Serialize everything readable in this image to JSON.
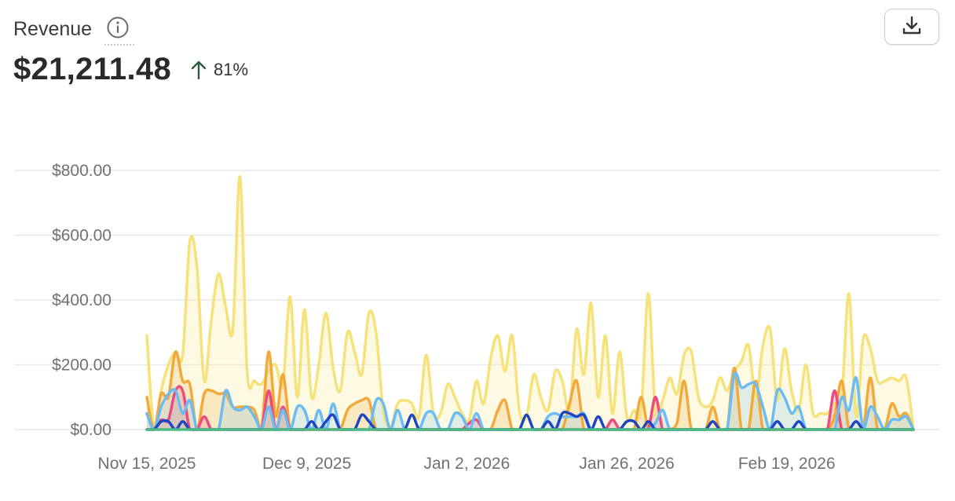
{
  "header": {
    "title": "Revenue",
    "total": "$21,211.48",
    "delta": "81%"
  },
  "icons": {
    "info": "info-icon",
    "delta": "arrow-up-icon",
    "download": "download-icon"
  },
  "colors": {
    "gold": "#f6e27a",
    "orange": "#f2a93b",
    "pink": "#ec4c7d",
    "sky": "#6cbcf2",
    "navy": "#1f45c2",
    "green": "#4dbb82",
    "grid": "#e9e9e9"
  },
  "chart_data": {
    "type": "area",
    "title": "Revenue",
    "xlabel": "",
    "ylabel": "",
    "x_range": [
      "2025-11-15",
      "2026-03-10"
    ],
    "ylim": [
      0,
      820
    ],
    "y_ticks": [
      {
        "value": 0,
        "label": "$0.00"
      },
      {
        "value": 200,
        "label": "$200.00"
      },
      {
        "value": 400,
        "label": "$400.00"
      },
      {
        "value": 600,
        "label": "$600.00"
      },
      {
        "value": 800,
        "label": "$800.00"
      }
    ],
    "x_ticks": [
      {
        "date": "2025-11-15",
        "label": "Nov 15, 2025"
      },
      {
        "date": "2025-12-09",
        "label": "Dec 9, 2025"
      },
      {
        "date": "2026-01-02",
        "label": "Jan 2, 2026"
      },
      {
        "date": "2026-01-26",
        "label": "Jan 26, 2026"
      },
      {
        "date": "2026-02-19",
        "label": "Feb 19, 2026"
      }
    ],
    "grid": true,
    "legend": "none",
    "series": [
      {
        "color": "#f6e27a",
        "fill": true,
        "values": [
          290,
          0,
          120,
          200,
          240,
          230,
          580,
          500,
          150,
          340,
          480,
          380,
          310,
          780,
          180,
          150,
          140,
          180,
          200,
          140,
          410,
          100,
          370,
          100,
          200,
          360,
          190,
          120,
          300,
          240,
          170,
          360,
          300,
          60,
          10,
          80,
          90,
          80,
          40,
          230,
          50,
          50,
          140,
          100,
          50,
          30,
          150,
          80,
          220,
          290,
          180,
          290,
          60,
          40,
          170,
          100,
          60,
          180,
          150,
          60,
          310,
          170,
          390,
          100,
          290,
          50,
          240,
          40,
          60,
          60,
          420,
          50,
          90,
          160,
          110,
          230,
          240,
          100,
          70,
          90,
          160,
          120,
          180,
          210,
          260,
          100,
          260,
          310,
          90,
          250,
          120,
          60,
          200,
          50,
          50,
          50,
          80,
          100,
          420,
          40,
          280,
          250,
          150,
          150,
          160,
          150,
          160,
          0
        ]
      },
      {
        "color": "#f2a93b",
        "fill": true,
        "values": [
          100,
          0,
          110,
          100,
          240,
          150,
          140,
          0,
          110,
          120,
          110,
          110,
          70,
          70,
          70,
          60,
          0,
          240,
          40,
          170,
          0,
          0,
          0,
          0,
          0,
          0,
          0,
          0,
          60,
          80,
          90,
          90,
          0,
          0,
          0,
          0,
          0,
          0,
          0,
          0,
          0,
          0,
          0,
          0,
          0,
          0,
          0,
          0,
          0,
          60,
          90,
          0,
          0,
          0,
          0,
          0,
          0,
          0,
          0,
          80,
          150,
          0,
          0,
          0,
          0,
          0,
          0,
          0,
          0,
          100,
          0,
          0,
          0,
          0,
          20,
          150,
          0,
          0,
          0,
          70,
          0,
          0,
          190,
          0,
          0,
          150,
          0,
          0,
          0,
          0,
          0,
          0,
          0,
          0,
          0,
          0,
          40,
          150,
          0,
          0,
          0,
          160,
          0,
          0,
          80,
          40,
          50,
          0
        ]
      },
      {
        "color": "#ec4c7d",
        "fill": true,
        "values": [
          0,
          0,
          30,
          30,
          120,
          120,
          0,
          0,
          40,
          0,
          0,
          0,
          0,
          0,
          0,
          0,
          0,
          120,
          0,
          70,
          0,
          0,
          0,
          0,
          0,
          0,
          0,
          0,
          0,
          0,
          0,
          0,
          0,
          0,
          0,
          0,
          0,
          0,
          0,
          0,
          0,
          0,
          0,
          0,
          0,
          20,
          30,
          0,
          0,
          0,
          0,
          0,
          0,
          0,
          0,
          0,
          0,
          0,
          0,
          0,
          0,
          0,
          0,
          0,
          0,
          30,
          0,
          0,
          0,
          0,
          0,
          100,
          0,
          0,
          0,
          0,
          0,
          0,
          0,
          0,
          0,
          0,
          0,
          0,
          0,
          0,
          0,
          0,
          0,
          0,
          0,
          0,
          0,
          0,
          0,
          0,
          120,
          0,
          0,
          0,
          0,
          0,
          0,
          0,
          0,
          0,
          0,
          0
        ]
      },
      {
        "color": "#6cbcf2",
        "fill": true,
        "values": [
          50,
          0,
          70,
          110,
          120,
          50,
          90,
          0,
          0,
          0,
          0,
          120,
          70,
          60,
          70,
          40,
          0,
          70,
          0,
          60,
          0,
          70,
          60,
          0,
          60,
          0,
          80,
          0,
          0,
          0,
          0,
          0,
          90,
          80,
          0,
          60,
          0,
          0,
          0,
          50,
          50,
          0,
          0,
          50,
          40,
          0,
          50,
          0,
          0,
          0,
          0,
          0,
          0,
          0,
          0,
          0,
          40,
          50,
          40,
          40,
          40,
          50,
          0,
          0,
          0,
          0,
          0,
          0,
          0,
          0,
          0,
          20,
          60,
          0,
          0,
          0,
          0,
          0,
          0,
          0,
          0,
          0,
          170,
          130,
          140,
          140,
          70,
          0,
          120,
          100,
          50,
          70,
          0,
          0,
          0,
          0,
          0,
          100,
          60,
          160,
          0,
          70,
          40,
          0,
          30,
          30,
          40,
          0
        ]
      },
      {
        "color": "#1f45c2",
        "fill": false,
        "values": [
          0,
          0,
          25,
          25,
          0,
          25,
          0,
          0,
          0,
          0,
          0,
          0,
          0,
          0,
          0,
          0,
          0,
          0,
          0,
          0,
          0,
          0,
          0,
          25,
          0,
          25,
          45,
          0,
          0,
          0,
          45,
          25,
          0,
          0,
          0,
          0,
          0,
          45,
          0,
          0,
          0,
          0,
          0,
          0,
          0,
          0,
          0,
          0,
          0,
          0,
          0,
          0,
          0,
          45,
          0,
          0,
          25,
          0,
          50,
          50,
          40,
          45,
          0,
          40,
          0,
          0,
          0,
          25,
          25,
          0,
          25,
          0,
          0,
          0,
          0,
          0,
          0,
          0,
          0,
          25,
          0,
          0,
          0,
          0,
          0,
          0,
          0,
          0,
          25,
          0,
          0,
          25,
          0,
          0,
          0,
          0,
          0,
          0,
          0,
          25,
          0,
          0,
          0,
          0,
          0,
          0,
          0,
          0
        ]
      },
      {
        "color": "#4dbb82",
        "fill": false,
        "values": [
          0,
          0,
          0,
          0,
          0,
          0,
          0,
          0,
          0,
          0,
          0,
          0,
          0,
          0,
          0,
          0,
          0,
          0,
          0,
          0,
          0,
          0,
          0,
          0,
          0,
          0,
          0,
          0,
          0,
          0,
          0,
          0,
          0,
          0,
          0,
          0,
          0,
          0,
          0,
          0,
          0,
          0,
          0,
          0,
          0,
          0,
          0,
          0,
          0,
          0,
          0,
          0,
          0,
          0,
          0,
          0,
          0,
          0,
          0,
          0,
          0,
          0,
          0,
          0,
          0,
          0,
          0,
          0,
          0,
          0,
          0,
          0,
          0,
          0,
          0,
          0,
          0,
          0,
          0,
          0,
          0,
          0,
          0,
          0,
          0,
          0,
          0,
          0,
          0,
          0,
          0,
          0,
          0,
          0,
          0,
          0,
          0,
          0,
          0,
          0,
          0,
          0,
          0,
          0,
          0,
          0,
          0,
          0
        ]
      }
    ]
  }
}
